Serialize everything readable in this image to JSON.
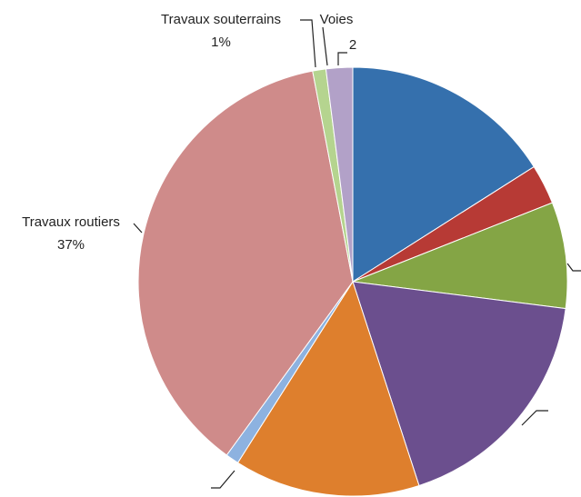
{
  "chart_data": {
    "type": "pie",
    "categories": [
      null,
      null,
      null,
      null,
      null,
      null,
      "Travaux routiers",
      "Travaux souterrains",
      "Voies"
    ],
    "values": [
      16,
      3,
      8,
      18,
      14,
      1,
      37,
      1,
      2
    ],
    "value_labels": [
      null,
      null,
      null,
      null,
      null,
      null,
      "37%",
      "1%",
      "2"
    ],
    "colors": [
      "#3570ad",
      "#b73a35",
      "#84a545",
      "#6b4f8e",
      "#de7f2d",
      "#8db2e0",
      "#cf8b8a",
      "#b5d48f",
      "#b2a1c8"
    ]
  }
}
